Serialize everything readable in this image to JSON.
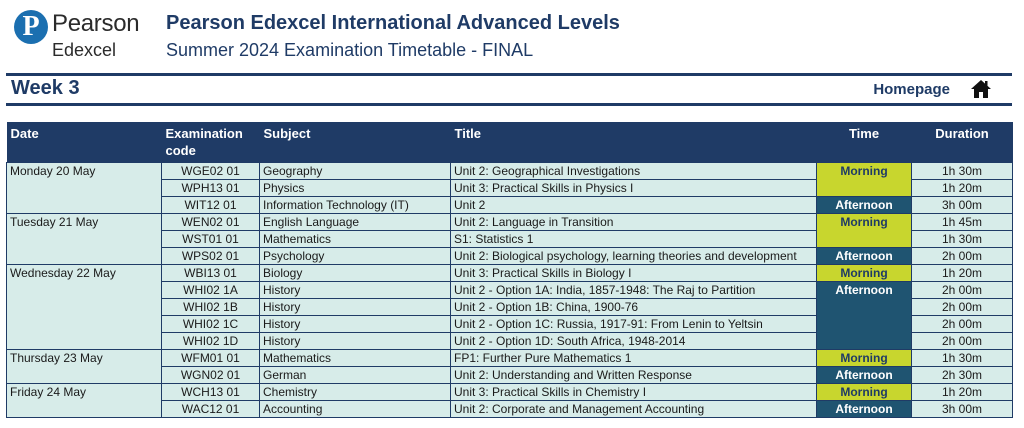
{
  "logo": {
    "line1": "Pearson",
    "line2": "Edexcel",
    "mark": "P"
  },
  "header": {
    "title": "Pearson Edexcel International Advanced Levels",
    "subtitle": "Summer 2024 Examination Timetable - FINAL"
  },
  "week": {
    "label": "Week 3",
    "homepage_label": "Homepage",
    "home_icon": "home-icon"
  },
  "columns": {
    "date": "Date",
    "code": "Examination code",
    "subject": "Subject",
    "title": "Title",
    "time": "Time",
    "duration": "Duration"
  },
  "rows": [
    {
      "date": "Monday 20 May",
      "code": "WGE02 01",
      "subject": "Geography",
      "title": "Unit 2: Geographical Investigations",
      "time": "Morning",
      "duration": "1h 30m"
    },
    {
      "date": "",
      "code": "WPH13 01",
      "subject": "Physics",
      "title": "Unit 3: Practical Skills in Physics I",
      "time": "",
      "duration": "1h 20m"
    },
    {
      "date": "",
      "code": "WIT12 01",
      "subject": "Information Technology (IT)",
      "title": "Unit 2",
      "time": "Afternoon",
      "duration": "3h 00m"
    },
    {
      "date": "Tuesday 21 May",
      "code": "WEN02 01",
      "subject": "English Language",
      "title": "Unit 2: Language in Transition",
      "time": "Morning",
      "duration": "1h 45m"
    },
    {
      "date": "",
      "code": "WST01 01",
      "subject": "Mathematics",
      "title": "S1: Statistics 1",
      "time": "",
      "duration": "1h 30m"
    },
    {
      "date": "",
      "code": "WPS02 01",
      "subject": "Psychology",
      "title": "Unit 2: Biological psychology, learning theories and development",
      "time": "Afternoon",
      "duration": "2h 00m"
    },
    {
      "date": "Wednesday 22 May",
      "code": "WBI13 01",
      "subject": "Biology",
      "title": "Unit 3: Practical Skills in Biology I",
      "time": "Morning",
      "duration": "1h 20m"
    },
    {
      "date": "",
      "code": "WHI02 1A",
      "subject": "History",
      "title": "Unit 2 - Option 1A: India, 1857-1948: The Raj to Partition",
      "time": "Afternoon",
      "duration": "2h 00m"
    },
    {
      "date": "",
      "code": "WHI02 1B",
      "subject": "History",
      "title": "Unit 2 - Option 1B: China, 1900-76",
      "time": "",
      "duration": "2h 00m"
    },
    {
      "date": "",
      "code": "WHI02 1C",
      "subject": "History",
      "title": "Unit 2 - Option 1C: Russia, 1917-91: From Lenin to Yeltsin",
      "time": "",
      "duration": "2h 00m"
    },
    {
      "date": "",
      "code": "WHI02 1D",
      "subject": "History",
      "title": "Unit 2 - Option 1D: South Africa, 1948-2014",
      "time": "",
      "duration": "2h 00m"
    },
    {
      "date": "Thursday 23 May",
      "code": "WFM01 01",
      "subject": "Mathematics",
      "title": "FP1: Further Pure Mathematics 1",
      "time": "Morning",
      "duration": "1h 30m"
    },
    {
      "date": "",
      "code": "WGN02 01",
      "subject": "German",
      "title": "Unit 2: Understanding and Written Response",
      "time": "Afternoon",
      "duration": "2h 30m"
    },
    {
      "date": "Friday 24 May",
      "code": "WCH13 01",
      "subject": "Chemistry",
      "title": "Unit 3: Practical Skills in Chemistry I",
      "time": "Morning",
      "duration": "1h 20m"
    },
    {
      "date": "",
      "code": "WAC12 01",
      "subject": "Accounting",
      "title": "Unit 2: Corporate and Management Accounting",
      "time": "Afternoon",
      "duration": "3h 00m"
    }
  ],
  "colors": {
    "navy": "#1f3b66",
    "row_fill": "#d7ece9",
    "morning": "#c8d62e",
    "afternoon": "#1f5471",
    "logo_blue": "#1b6fb0"
  }
}
